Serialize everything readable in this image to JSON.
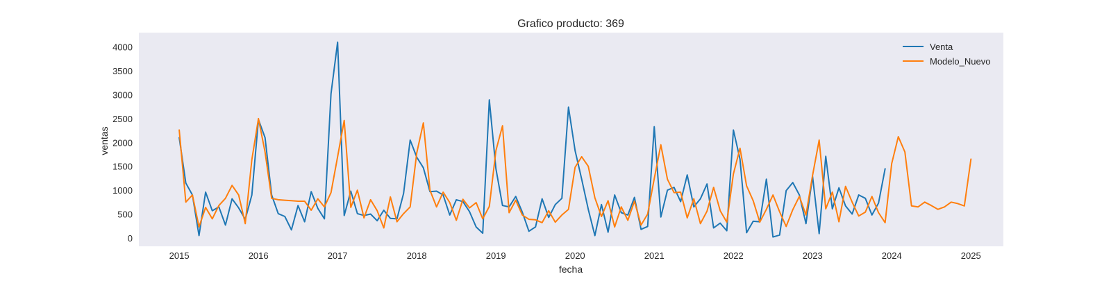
{
  "chart_data": {
    "type": "line",
    "title": "Grafico producto: 369",
    "xlabel": "fecha",
    "ylabel": "ventas",
    "grid": false,
    "legend_position": "top-right",
    "xlim": [
      2014.49,
      2025.41
    ],
    "ylim": [
      -175,
      4300
    ],
    "x_ticks": [
      2015,
      2016,
      2017,
      2018,
      2019,
      2020,
      2021,
      2022,
      2023,
      2024,
      2025
    ],
    "x_tick_labels": [
      "2015",
      "2016",
      "2017",
      "2018",
      "2019",
      "2020",
      "2021",
      "2022",
      "2023",
      "2024",
      "2025"
    ],
    "y_ticks": [
      0,
      500,
      1000,
      1500,
      2000,
      2500,
      3000,
      3500,
      4000
    ],
    "y_tick_labels": [
      "0",
      "500",
      "1000",
      "1500",
      "2000",
      "2500",
      "3000",
      "3500",
      "4000"
    ],
    "start_year": 2015,
    "step_per_point": 0.0833333,
    "series": [
      {
        "name": "Venta",
        "color": "#1f77b4",
        "values": [
          2100,
          1150,
          900,
          50,
          960,
          570,
          650,
          270,
          820,
          630,
          390,
          900,
          2480,
          2100,
          900,
          510,
          450,
          170,
          680,
          340,
          970,
          620,
          400,
          3020,
          4100,
          470,
          980,
          510,
          470,
          500,
          360,
          580,
          410,
          400,
          930,
          2050,
          1690,
          1470,
          970,
          980,
          900,
          480,
          800,
          760,
          550,
          230,
          100,
          2890,
          1450,
          680,
          650,
          870,
          540,
          140,
          230,
          820,
          430,
          700,
          830,
          2740,
          1830,
          1230,
          600,
          50,
          700,
          120,
          900,
          530,
          480,
          850,
          180,
          240,
          2330,
          440,
          1000,
          1060,
          760,
          1320,
          650,
          820,
          1130,
          210,
          310,
          150,
          2260,
          1650,
          110,
          350,
          340,
          1230,
          20,
          60,
          990,
          1160,
          900,
          300,
          1290,
          90,
          1710,
          610,
          1050,
          670,
          500,
          900,
          830,
          480,
          730,
          1450
        ]
      },
      {
        "name": "Modelo_Nuevo",
        "color": "#ff7f0e",
        "values": [
          2260,
          750,
          900,
          230,
          640,
          400,
          680,
          830,
          1100,
          900,
          300,
          1640,
          2500,
          1800,
          830,
          800,
          790,
          780,
          770,
          770,
          580,
          820,
          650,
          950,
          1700,
          2460,
          640,
          1000,
          420,
          800,
          570,
          210,
          860,
          340,
          510,
          650,
          1780,
          2410,
          1000,
          650,
          960,
          740,
          370,
          810,
          630,
          740,
          400,
          660,
          1830,
          2350,
          530,
          790,
          480,
          390,
          380,
          320,
          570,
          330,
          480,
          600,
          1480,
          1700,
          1500,
          840,
          450,
          780,
          230,
          650,
          370,
          770,
          270,
          500,
          1240,
          1950,
          1230,
          950,
          960,
          420,
          820,
          300,
          560,
          1060,
          570,
          330,
          1340,
          1880,
          1090,
          780,
          330,
          600,
          900,
          550,
          240,
          590,
          870,
          480,
          1310,
          2050,
          610,
          960,
          340,
          1080,
          750,
          460,
          540,
          870,
          530,
          320,
          1560,
          2120,
          1800,
          670,
          650,
          750,
          680,
          600,
          650,
          750,
          720,
          670,
          1650
        ]
      }
    ]
  }
}
